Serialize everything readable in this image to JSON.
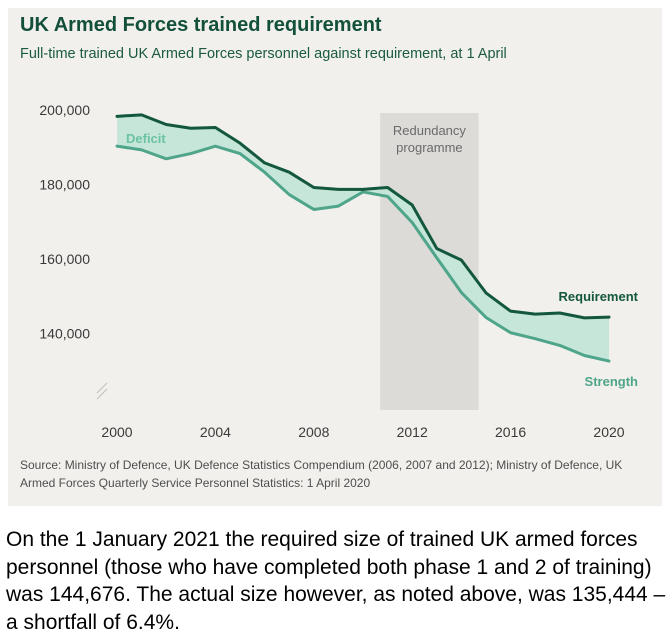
{
  "title": "UK Armed Forces trained requirement",
  "subtitle": "Full-time trained UK Armed Forces personnel against requirement, at 1 April",
  "source": "Source: Ministry of Defence, UK Defence Statistics Compendium (2006, 2007 and 2012); Ministry of Defence, UK Armed Forces Quarterly Service Personnel Statistics: 1 April 2020",
  "caption": " On the 1 January 2021 the required size of trained UK armed forces personnel (those who have completed both phase 1 and 2 of training) was 144,676. The actual size however, as noted above, was 135,444 – a shortfall of 6.4%.",
  "colors": {
    "requirement": "#13573c",
    "strength": "#4fa58a",
    "deficit_fill": "#c6e6da",
    "shaded": "#dcdbd7"
  },
  "chart_data": {
    "type": "line",
    "x": [
      2000,
      2001,
      2002,
      2003,
      2004,
      2005,
      2006,
      2007,
      2008,
      2009,
      2010,
      2011,
      2012,
      2013,
      2014,
      2015,
      2016,
      2017,
      2018,
      2019,
      2020
    ],
    "series": [
      {
        "name": "Requirement",
        "values": [
          198300,
          198700,
          196100,
          195100,
          195300,
          191100,
          185800,
          183300,
          179200,
          178700,
          178700,
          179200,
          174500,
          162800,
          159700,
          150900,
          146000,
          145200,
          145500,
          144200,
          144400
        ]
      },
      {
        "name": "Strength",
        "values": [
          190300,
          189300,
          186900,
          188300,
          190300,
          188300,
          183300,
          177300,
          173300,
          174200,
          178000,
          176800,
          169800,
          160300,
          151000,
          144300,
          140200,
          138600,
          136800,
          134100,
          132600
        ]
      }
    ],
    "annotations": {
      "deficit": "Deficit",
      "shaded_band": "Redundancy programme",
      "shaded_from": 2010.7,
      "shaded_to": 2014.7
    },
    "xticks": [
      "2000",
      "2004",
      "2008",
      "2012",
      "2016",
      "2020"
    ],
    "yticks": [
      "140,000",
      "160,000",
      "180,000",
      "200,000"
    ],
    "xlim": [
      2000,
      2020
    ],
    "ylim": [
      120000,
      200000
    ],
    "grid": false
  }
}
